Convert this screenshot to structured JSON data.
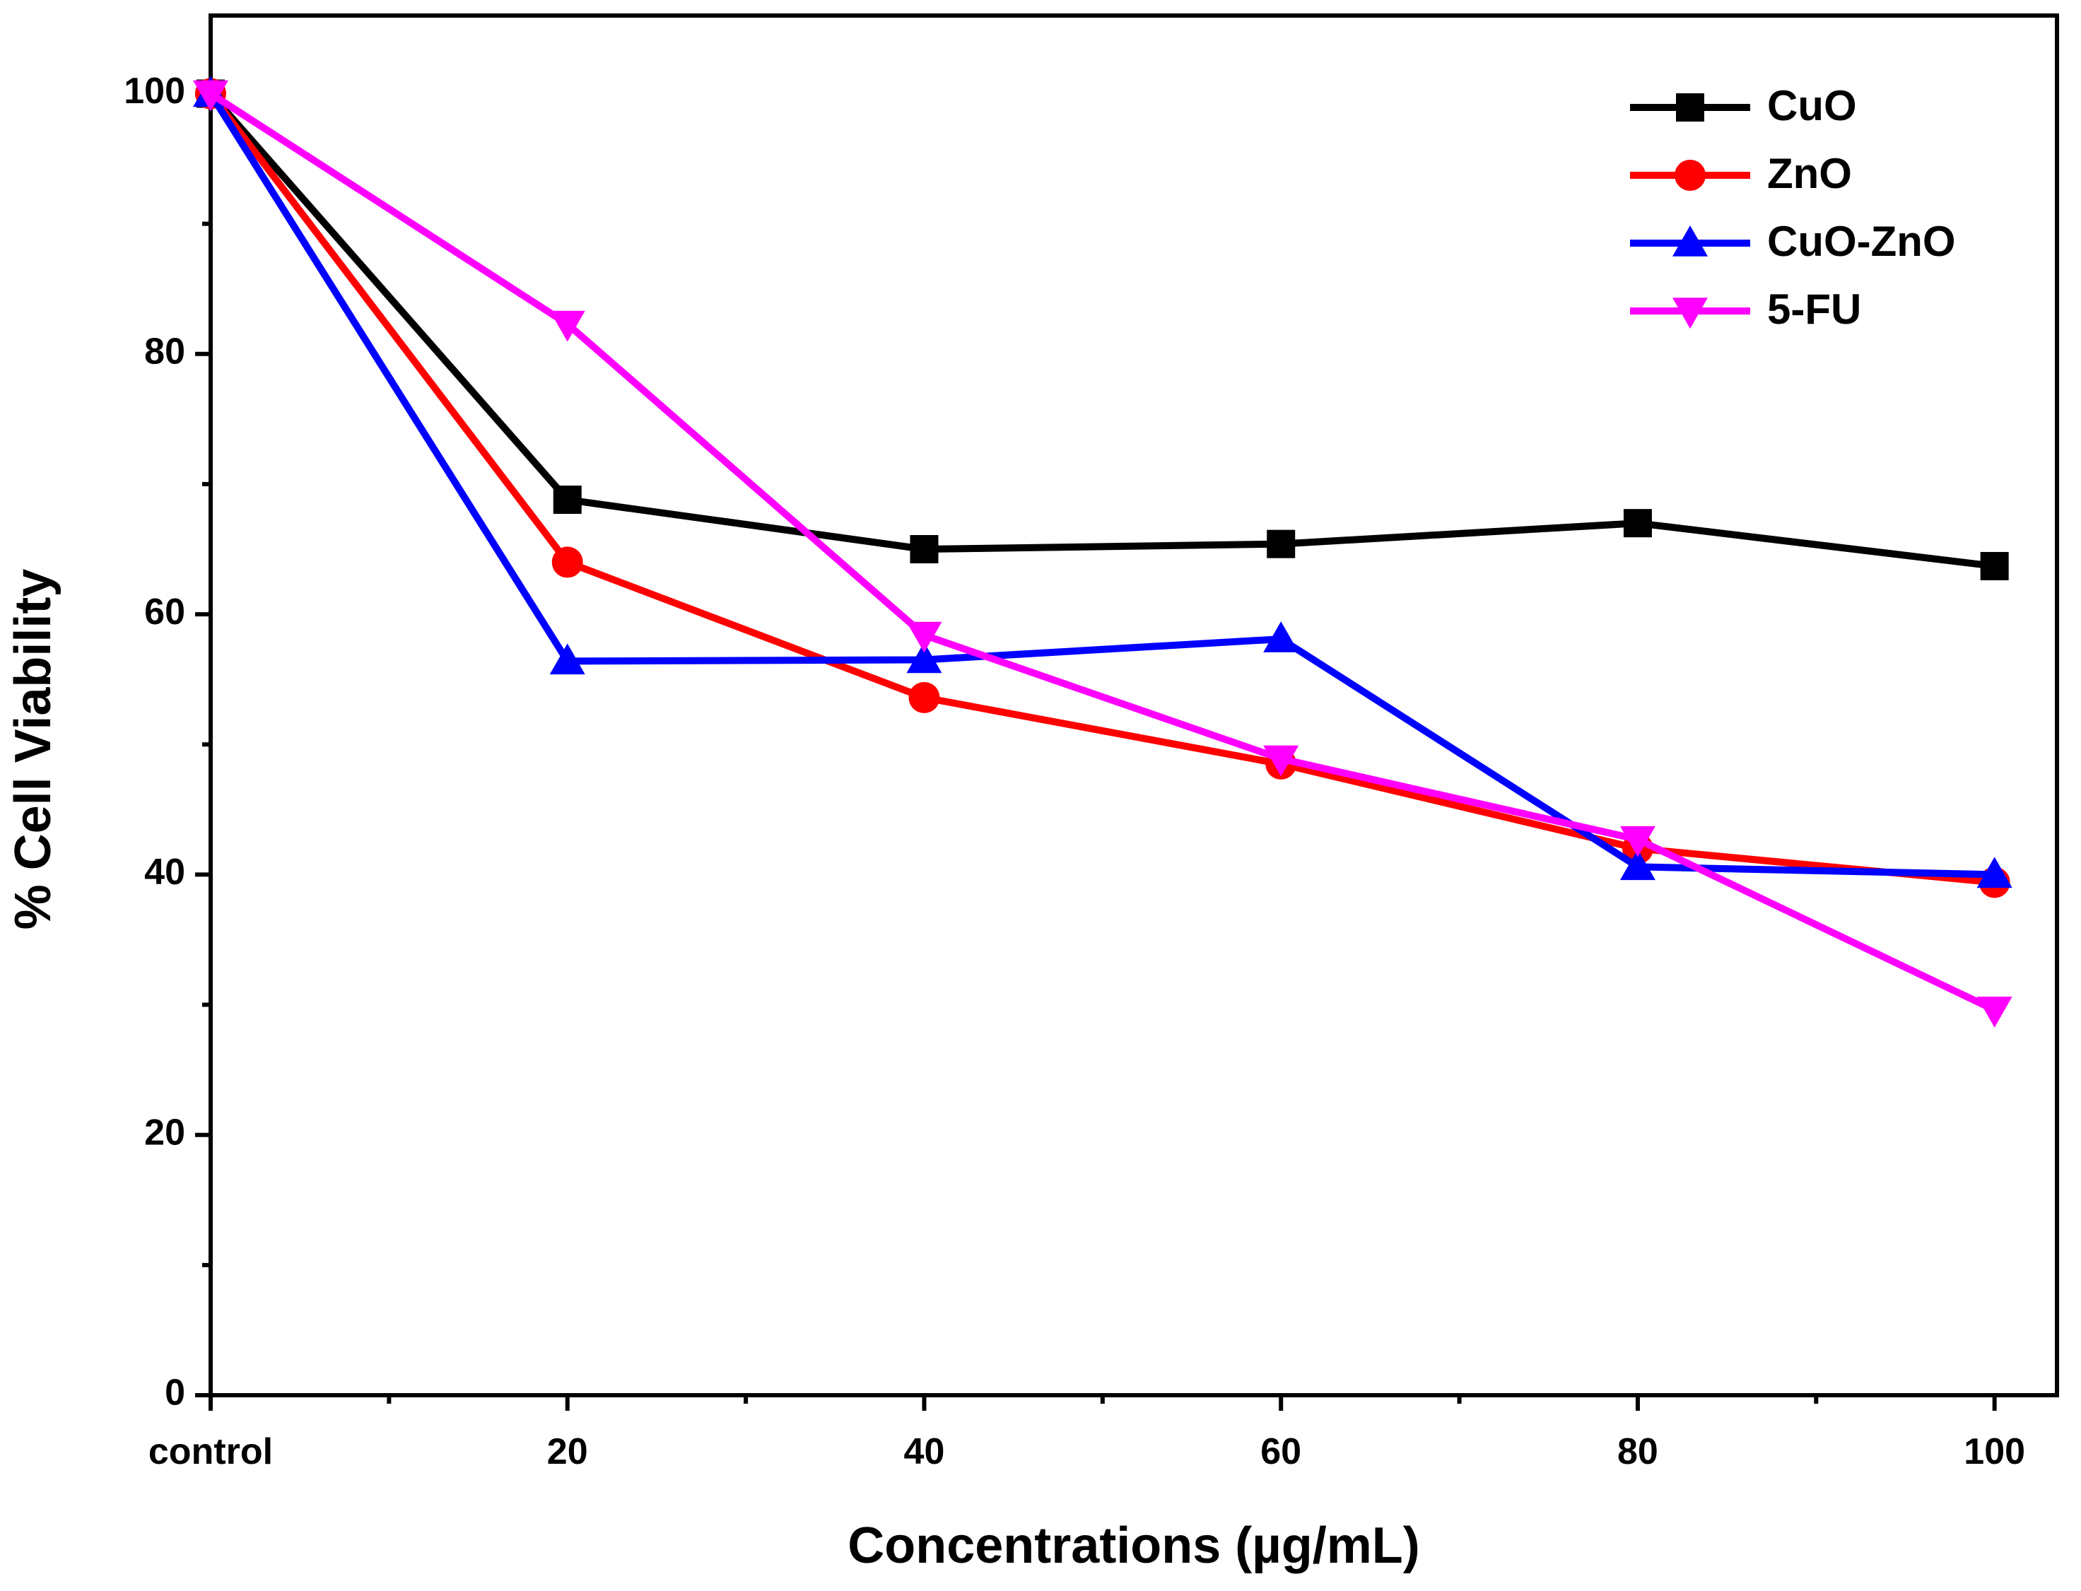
{
  "chart_data": {
    "type": "line",
    "title": "",
    "xlabel": "Concentrations (µg/mL)",
    "ylabel": "% Cell Viability",
    "categories": [
      "control",
      "20",
      "40",
      "60",
      "80",
      "100"
    ],
    "x_values": [
      0,
      20,
      40,
      60,
      80,
      100
    ],
    "xlim": [
      0,
      103.5
    ],
    "ylim": [
      0,
      106
    ],
    "y_ticks": [
      0,
      20,
      40,
      60,
      80,
      100
    ],
    "y_tick_labels": [
      "0",
      "20",
      "40",
      "60",
      "80",
      "100"
    ],
    "legend_position": "top-right",
    "grid": false,
    "series": [
      {
        "name": "CuO",
        "color": "#000000",
        "marker": "square",
        "values": [
          100,
          68.8,
          65.0,
          65.4,
          67.0,
          63.7
        ]
      },
      {
        "name": "ZnO",
        "color": "#ff0000",
        "marker": "circle",
        "values": [
          100,
          64.0,
          53.6,
          48.5,
          42.0,
          39.4
        ]
      },
      {
        "name": "CuO-ZnO",
        "color": "#0000ff",
        "marker": "triangle-up",
        "values": [
          100,
          56.4,
          56.5,
          58.1,
          40.6,
          40.0
        ]
      },
      {
        "name": "5-FU",
        "color": "#ff00ff",
        "marker": "triangle-down",
        "values": [
          100,
          82.3,
          58.4,
          48.9,
          42.7,
          29.6
        ]
      }
    ]
  }
}
